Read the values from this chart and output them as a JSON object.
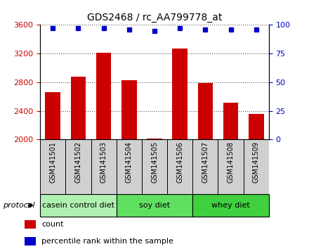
{
  "title": "GDS2468 / rc_AA799778_at",
  "samples": [
    "GSM141501",
    "GSM141502",
    "GSM141503",
    "GSM141504",
    "GSM141505",
    "GSM141506",
    "GSM141507",
    "GSM141508",
    "GSM141509"
  ],
  "counts": [
    2660,
    2880,
    3210,
    2830,
    2010,
    3270,
    2785,
    2510,
    2360
  ],
  "percentile_ranks": [
    97,
    97,
    97,
    96,
    95,
    97,
    96,
    96,
    96
  ],
  "ylim_left": [
    2000,
    3600
  ],
  "ylim_right": [
    0,
    100
  ],
  "yticks_left": [
    2000,
    2400,
    2800,
    3200,
    3600
  ],
  "yticks_right": [
    0,
    25,
    50,
    75,
    100
  ],
  "groups": [
    {
      "label": "casein control diet",
      "n": 3,
      "color": "#b0f0b0"
    },
    {
      "label": "soy diet",
      "n": 3,
      "color": "#60e060"
    },
    {
      "label": "whey diet",
      "n": 3,
      "color": "#40d040"
    }
  ],
  "bar_color": "#cc0000",
  "dot_color": "#0000cc",
  "protocol_label": "protocol",
  "legend_count_label": "count",
  "legend_percentile_label": "percentile rank within the sample",
  "plot_bg": "#ffffff",
  "grid_color": "#555555",
  "sample_box_color": "#d0d0d0"
}
